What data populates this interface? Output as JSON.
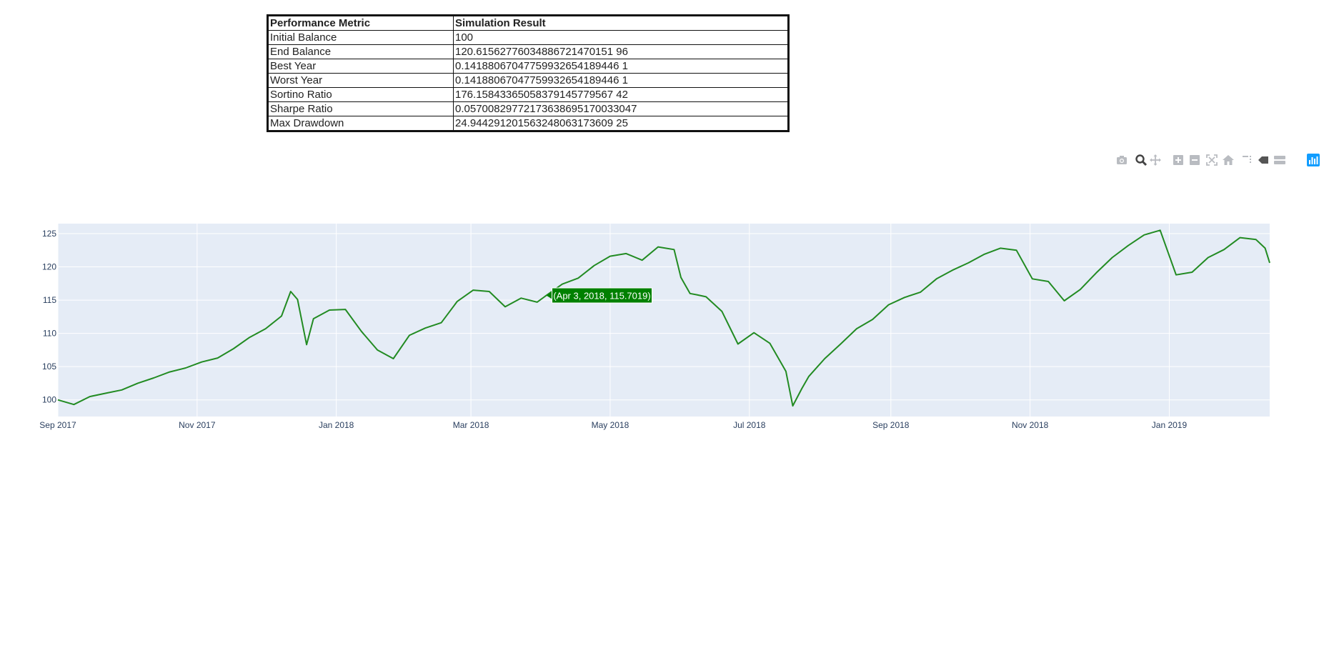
{
  "table": {
    "headers": [
      "Performance Metric",
      "Simulation Result"
    ],
    "rows": [
      [
        "Initial Balance",
        "100"
      ],
      [
        "End Balance",
        "120.61562776034886721470151 96"
      ],
      [
        "Best Year",
        "0.14188067047759932654189446 1"
      ],
      [
        "Worst Year",
        "0.14188067047759932654189446 1"
      ],
      [
        "Sortino Ratio",
        "176.15843365058379145779567 42"
      ],
      [
        "Sharpe Ratio",
        "0.05700829772173638695170033047"
      ],
      [
        "Max Drawdown",
        "24.944291201563248063173609 25"
      ]
    ]
  },
  "modebar": {
    "buttons": [
      "camera-icon",
      "zoom-icon",
      "pan-icon",
      "zoom-in-icon",
      "zoom-out-icon",
      "autoscale-icon",
      "home-icon",
      "spike-lines-icon",
      "hover-closest-icon",
      "hover-compare-icon",
      "plotly-logo-icon"
    ]
  },
  "chart_data": {
    "type": "line",
    "title": "",
    "xlabel": "",
    "ylabel": "",
    "ylim": [
      97.5,
      126.5
    ],
    "xlim": [
      "2017-09-01",
      "2019-02-14"
    ],
    "grid": true,
    "line_color": "#228B22",
    "plot_bg": "#E5ECF6",
    "x_ticks": [
      {
        "date": "2017-09-01",
        "label": "Sep 2017"
      },
      {
        "date": "2017-11-01",
        "label": "Nov 2017"
      },
      {
        "date": "2018-01-01",
        "label": "Jan 2018"
      },
      {
        "date": "2018-03-01",
        "label": "Mar 2018"
      },
      {
        "date": "2018-05-01",
        "label": "May 2018"
      },
      {
        "date": "2018-07-01",
        "label": "Jul 2018"
      },
      {
        "date": "2018-09-01",
        "label": "Sep 2018"
      },
      {
        "date": "2018-11-01",
        "label": "Nov 2018"
      },
      {
        "date": "2019-01-01",
        "label": "Jan 2019"
      }
    ],
    "y_ticks": [
      100,
      105,
      110,
      115,
      120,
      125
    ],
    "x": [
      "2017-09-01",
      "2017-09-08",
      "2017-09-15",
      "2017-09-22",
      "2017-09-29",
      "2017-10-06",
      "2017-10-13",
      "2017-10-20",
      "2017-10-27",
      "2017-11-03",
      "2017-11-10",
      "2017-11-17",
      "2017-11-24",
      "2017-12-01",
      "2017-12-08",
      "2017-12-12",
      "2017-12-15",
      "2017-12-19",
      "2017-12-22",
      "2017-12-29",
      "2018-01-05",
      "2018-01-12",
      "2018-01-19",
      "2018-01-26",
      "2018-02-02",
      "2018-02-09",
      "2018-02-16",
      "2018-02-23",
      "2018-03-02",
      "2018-03-09",
      "2018-03-16",
      "2018-03-23",
      "2018-03-30",
      "2018-04-03",
      "2018-04-10",
      "2018-04-17",
      "2018-04-24",
      "2018-05-01",
      "2018-05-08",
      "2018-05-15",
      "2018-05-22",
      "2018-05-29",
      "2018-06-01",
      "2018-06-05",
      "2018-06-08",
      "2018-06-12",
      "2018-06-19",
      "2018-06-26",
      "2018-07-03",
      "2018-07-10",
      "2018-07-17",
      "2018-07-20",
      "2018-07-24",
      "2018-07-27",
      "2018-08-03",
      "2018-08-10",
      "2018-08-17",
      "2018-08-24",
      "2018-08-31",
      "2018-09-07",
      "2018-09-14",
      "2018-09-21",
      "2018-09-28",
      "2018-10-05",
      "2018-10-12",
      "2018-10-19",
      "2018-10-26",
      "2018-11-02",
      "2018-11-09",
      "2018-11-16",
      "2018-11-23",
      "2018-11-30",
      "2018-12-07",
      "2018-12-14",
      "2018-12-21",
      "2018-12-28",
      "2019-01-04",
      "2019-01-11",
      "2019-01-18",
      "2019-01-25",
      "2019-02-01",
      "2019-02-08",
      "2019-02-12",
      "2019-02-14"
    ],
    "series": [
      {
        "values": [
          100,
          99.3,
          100.5,
          101,
          101.5,
          102.5,
          103.3,
          104.2,
          104.8,
          105.7,
          106.3,
          107.7,
          109.4,
          110.7,
          112.6,
          116.3,
          115.1,
          108.3,
          112.2,
          113.5,
          113.6,
          110.3,
          107.5,
          106.2,
          109.7,
          110.8,
          111.6,
          114.8,
          116.5,
          116.3,
          114,
          115.3,
          114.7,
          115.7,
          117.4,
          118.3,
          120.2,
          121.6,
          122,
          121,
          123,
          122.6,
          118.4,
          116,
          115.8,
          115.5,
          113.3,
          108.4,
          110.1,
          108.5,
          104.3,
          99.1,
          101.7,
          103.5,
          106.2,
          108.4,
          110.7,
          112.1,
          114.3,
          115.4,
          116.2,
          118.2,
          119.5,
          120.6,
          121.9,
          122.8,
          122.5,
          118.2,
          117.8,
          114.9,
          116.6,
          119.1,
          121.4,
          123.2,
          124.8,
          125.5,
          118.8,
          119.2,
          121.4,
          122.6,
          124.4,
          124.1,
          122.8,
          120.6
        ]
      }
    ],
    "tooltip": {
      "date": "2018-04-03",
      "value": 115.7019,
      "text": "(Apr 3, 2018, 115.7019)",
      "bg": "#008000",
      "fg": "#ffffff"
    }
  }
}
